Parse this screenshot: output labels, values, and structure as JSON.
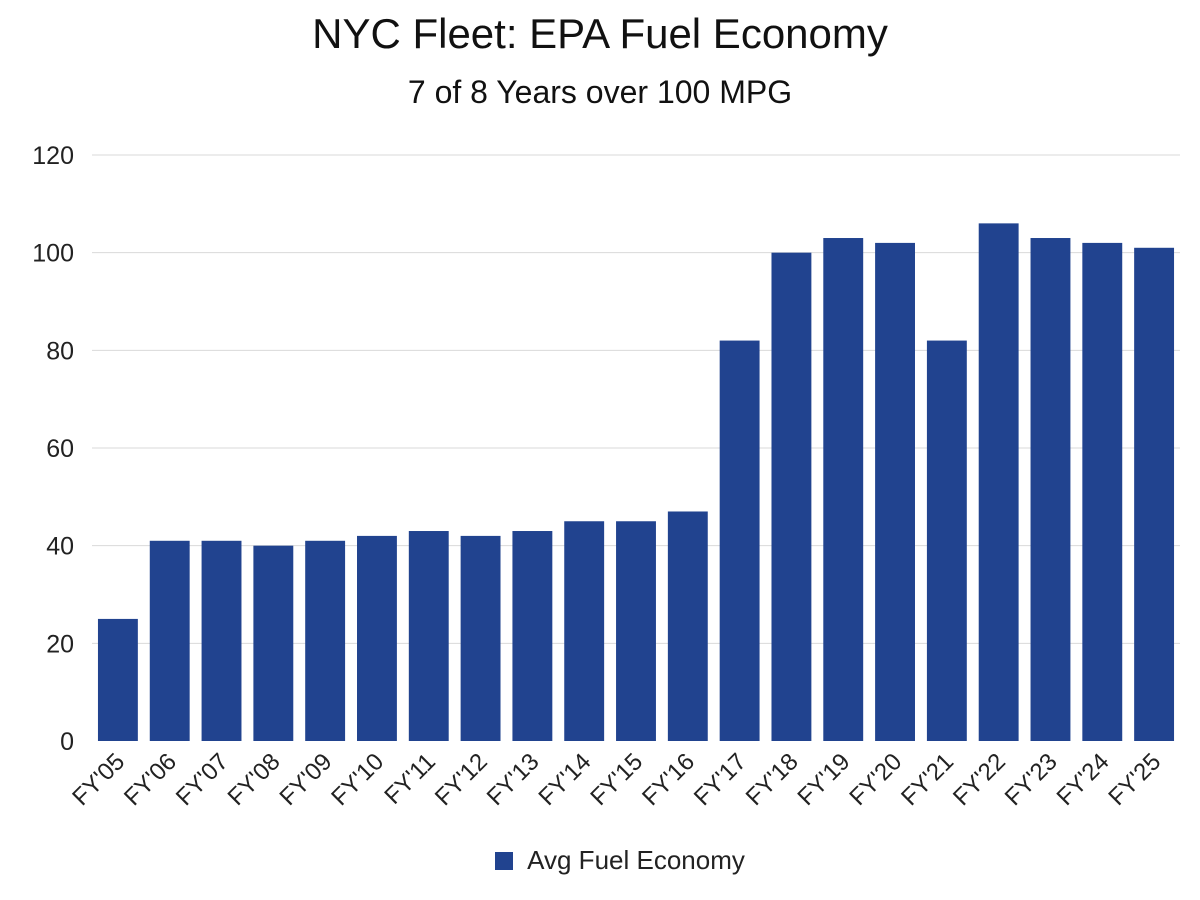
{
  "chart_data": {
    "type": "bar",
    "title": "NYC Fleet: EPA Fuel Economy",
    "subtitle": "7 of 8 Years over 100 MPG",
    "xlabel": "",
    "ylabel": "",
    "categories": [
      "FY'05",
      "FY'06",
      "FY'07",
      "FY'08",
      "FY'09",
      "FY'10",
      "FY'11",
      "FY'12",
      "FY'13",
      "FY'14",
      "FY'15",
      "FY'16",
      "FY'17",
      "FY'18",
      "FY'19",
      "FY'20",
      "FY'21",
      "FY'22",
      "FY'23",
      "FY'24",
      "FY'25"
    ],
    "series": [
      {
        "name": "Avg Fuel Economy",
        "color": "#21438f",
        "values": [
          25,
          41,
          41,
          40,
          41,
          42,
          43,
          42,
          43,
          45,
          45,
          47,
          82,
          100,
          103,
          102,
          82,
          106,
          103,
          102,
          101
        ]
      }
    ],
    "ylim": [
      0,
      120
    ],
    "yticks": [
      0,
      20,
      40,
      60,
      80,
      100,
      120
    ],
    "grid": true,
    "legend_position": "bottom-center"
  }
}
